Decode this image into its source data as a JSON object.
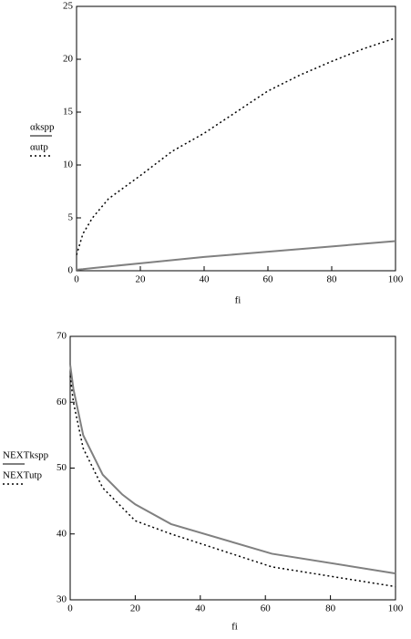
{
  "chart_data": [
    {
      "type": "line",
      "x_label": "fi",
      "x": [
        0,
        2,
        5,
        10,
        20,
        30,
        40,
        50,
        60,
        70,
        80,
        90,
        100
      ],
      "series": [
        {
          "name": "αkspp",
          "color": "#808080",
          "line_style": "solid",
          "values": [
            0.1,
            0.15,
            0.25,
            0.4,
            0.7,
            1.0,
            1.3,
            1.55,
            1.8,
            2.05,
            2.3,
            2.55,
            2.8
          ]
        },
        {
          "name": "αutp",
          "color": "#000000",
          "line_style": "dotted",
          "values": [
            1.5,
            3.5,
            5.0,
            6.8,
            9.0,
            11.3,
            13.0,
            15.0,
            17.0,
            18.5,
            19.8,
            21.0,
            22.0
          ]
        }
      ],
      "xlim": [
        0,
        100
      ],
      "xticks": [
        0,
        20,
        40,
        60,
        80,
        100
      ],
      "ylim": [
        0,
        25
      ],
      "yticks": [
        0,
        5,
        10,
        15,
        20,
        25
      ]
    },
    {
      "type": "line",
      "x_label": "fi",
      "x": [
        0,
        1,
        4,
        10,
        16,
        20,
        31,
        62,
        100
      ],
      "series": [
        {
          "name": "NEXTkspp",
          "color": "#808080",
          "line_style": "solid",
          "values": [
            65.7,
            62,
            55,
            49,
            46,
            44.5,
            41.5,
            37,
            34
          ]
        },
        {
          "name": "NEXTutp",
          "color": "#000000",
          "line_style": "dotted",
          "values": [
            64,
            60,
            53,
            47,
            44,
            42,
            40,
            35,
            32
          ]
        }
      ],
      "xlim": [
        0,
        100
      ],
      "xticks": [
        0,
        20,
        40,
        60,
        80,
        100
      ],
      "ylim": [
        30,
        70
      ],
      "yticks": [
        30,
        40,
        50,
        60,
        70
      ]
    }
  ]
}
